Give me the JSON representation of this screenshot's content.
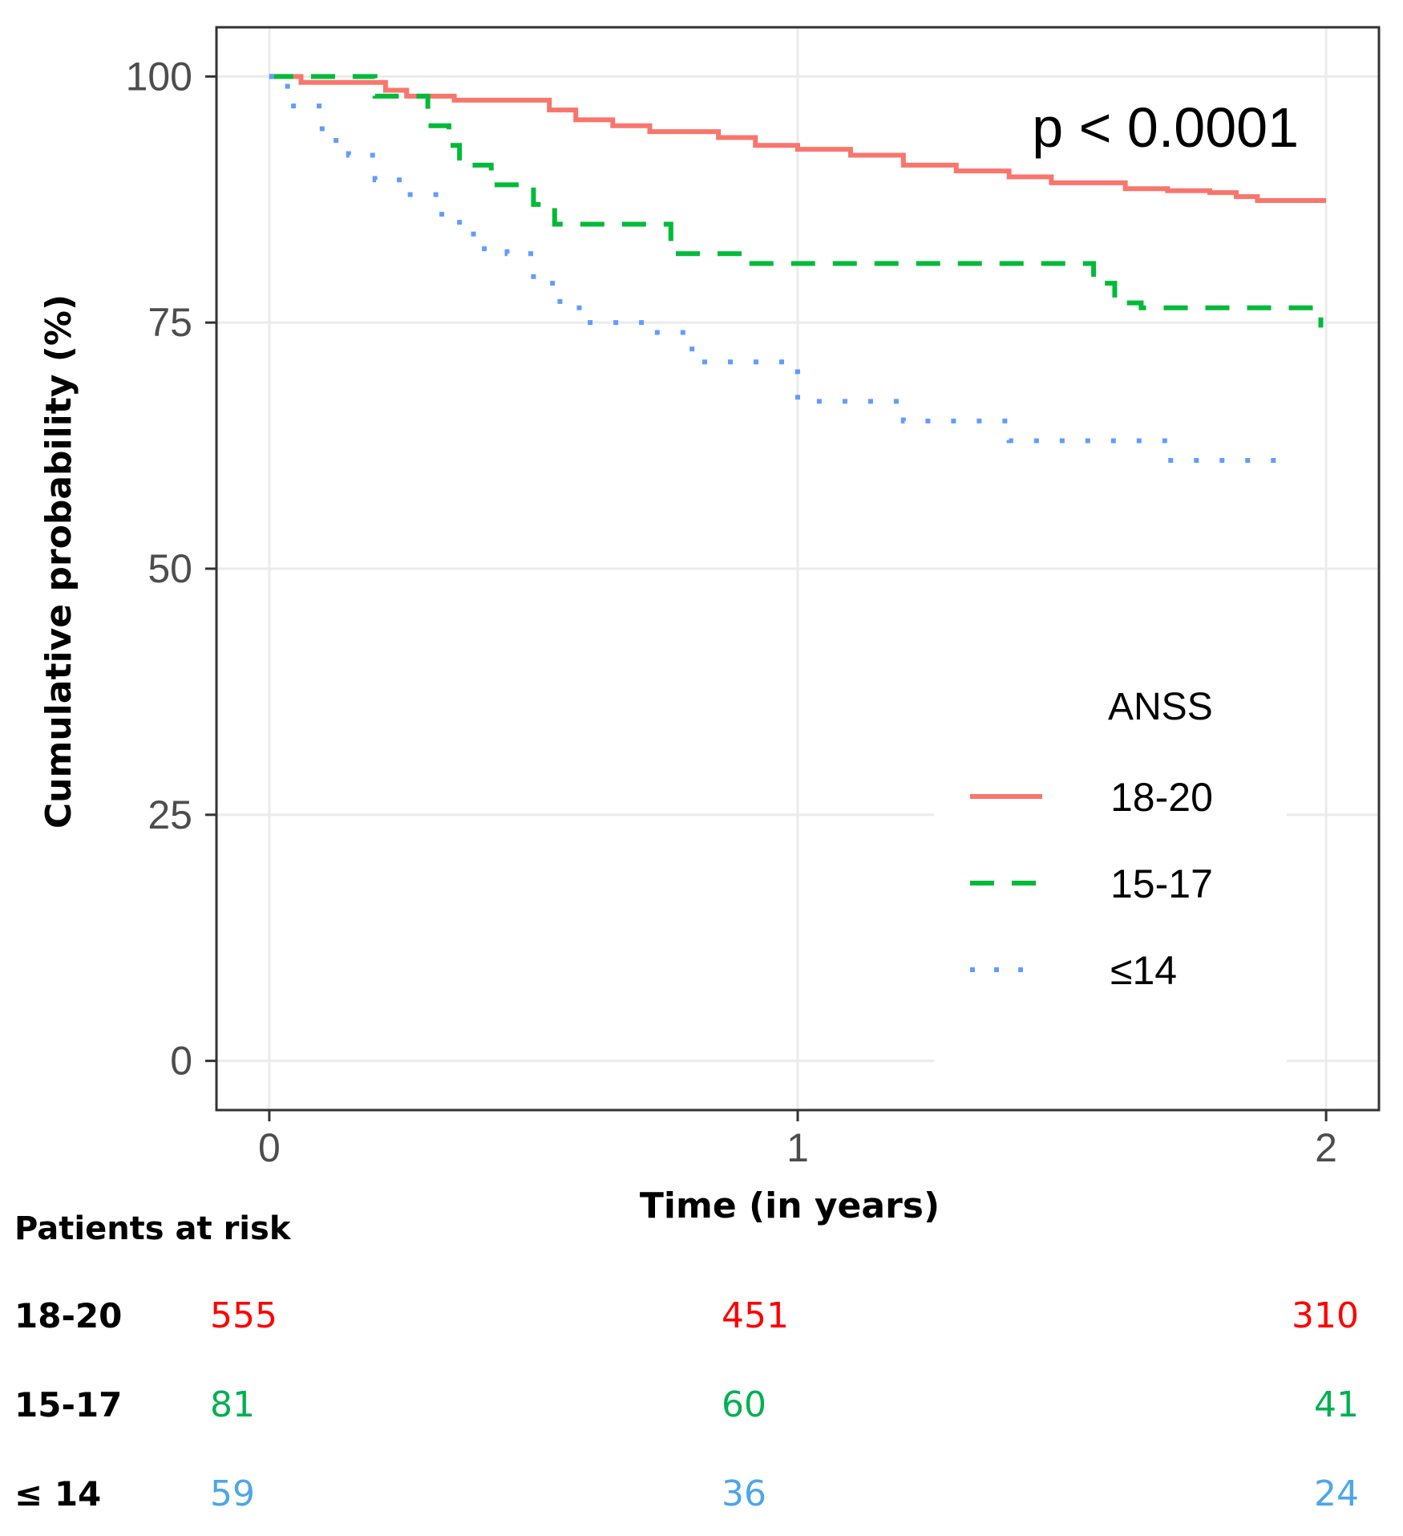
{
  "chart_data": {
    "type": "line",
    "subtype": "kaplan-meier",
    "xlabel": "Time (in years)",
    "ylabel": "Cumulative probability (%)",
    "xlim": [
      -0.1,
      2.1
    ],
    "ylim": [
      -5,
      105
    ],
    "x_ticks": [
      "0",
      "1",
      "2"
    ],
    "y_ticks": [
      "0",
      "25",
      "50",
      "75",
      "100"
    ],
    "grid": true,
    "annotation": "p < 0.0001",
    "legend": {
      "title": "ANSS",
      "position": "right"
    },
    "series": [
      {
        "name": "18-20",
        "color": "#f8766d",
        "linestyle": "solid",
        "x": [
          0,
          0.06,
          0.14,
          0.22,
          0.26,
          0.35,
          0.48,
          0.53,
          0.58,
          0.65,
          0.72,
          0.85,
          0.92,
          1.0,
          1.1,
          1.2,
          1.3,
          1.4,
          1.48,
          1.55,
          1.62,
          1.7,
          1.78,
          1.83,
          1.87,
          1.95,
          2.0
        ],
        "y": [
          100,
          99.4,
          99.4,
          98.6,
          98.0,
          97.6,
          97.6,
          96.6,
          95.6,
          95.0,
          94.4,
          93.8,
          93.0,
          92.6,
          92.0,
          91.0,
          90.4,
          89.8,
          89.2,
          89.2,
          88.6,
          88.4,
          88.2,
          87.8,
          87.4,
          87.4,
          87.4
        ]
      },
      {
        "name": "15-17",
        "color": "#00ba38",
        "linestyle": "dashed",
        "x": [
          0,
          0.12,
          0.2,
          0.3,
          0.34,
          0.36,
          0.42,
          0.5,
          0.54,
          0.66,
          0.76,
          0.82,
          0.9,
          1.0,
          1.2,
          1.45,
          1.5,
          1.56,
          1.6,
          1.65,
          1.75,
          1.85,
          1.99
        ],
        "y": [
          100,
          100,
          98,
          95,
          93,
          91,
          89,
          87,
          85,
          85,
          82,
          82,
          81,
          81,
          81,
          81,
          81,
          79,
          77,
          76.5,
          76.5,
          76.5,
          74.5
        ]
      },
      {
        "name": "≤14",
        "color": "#619cff",
        "linestyle": "dotted",
        "x": [
          0,
          0.02,
          0.04,
          0.1,
          0.15,
          0.2,
          0.26,
          0.32,
          0.36,
          0.4,
          0.45,
          0.5,
          0.55,
          0.6,
          0.72,
          0.8,
          0.88,
          0.98,
          1.0,
          1.1,
          1.2,
          1.3,
          1.4,
          1.5,
          1.6,
          1.7,
          1.8,
          1.94
        ],
        "y": [
          100,
          99,
          97,
          93.5,
          92,
          89.5,
          88,
          86,
          84,
          82.5,
          82,
          79,
          76.5,
          75,
          74,
          71,
          71,
          70,
          67,
          67,
          65,
          65,
          63,
          63,
          63,
          61,
          61,
          61
        ]
      }
    ]
  },
  "risk_table": {
    "title": "Patients at risk",
    "rows": [
      {
        "group": "18-20",
        "color": "#ff0000",
        "values": [
          "555",
          "451",
          "310"
        ]
      },
      {
        "group": "15-17",
        "color": "#00b050",
        "values": [
          "81",
          "60",
          "41"
        ]
      },
      {
        "group": "≤ 14",
        "color": "#4da6e8",
        "values": [
          "59",
          "36",
          "24"
        ]
      }
    ]
  }
}
